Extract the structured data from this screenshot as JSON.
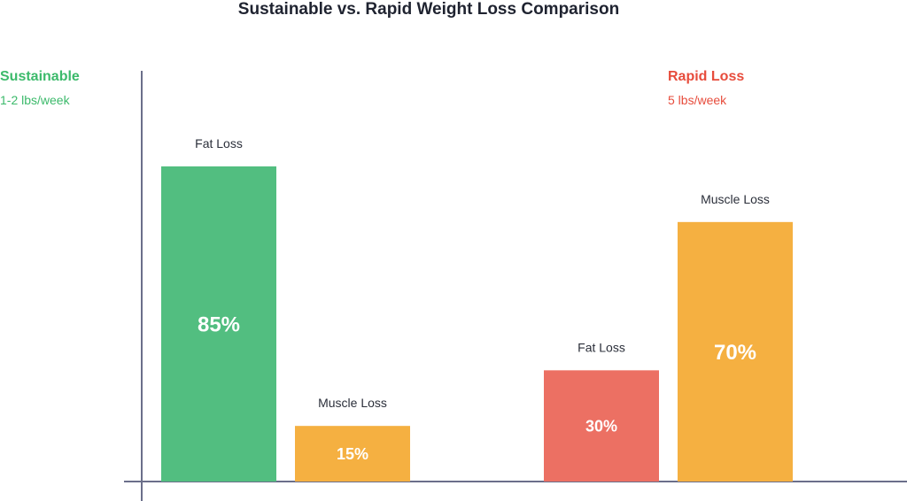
{
  "chart_data": {
    "type": "bar",
    "title": "Sustainable vs. Rapid Weight Loss Comparison",
    "xlabel": "",
    "ylabel": "",
    "ylim": [
      0,
      100
    ],
    "unit": "%",
    "grid": false,
    "groups": [
      {
        "name": "Sustainable",
        "subtitle": "1-2 lbs/week",
        "color": "#3cba6b",
        "bars": [
          {
            "label": "Fat Loss",
            "value": 85,
            "display": "85%",
            "color": "#52be80"
          },
          {
            "label": "Muscle Loss",
            "value": 15,
            "display": "15%",
            "color": "#f5b041"
          }
        ]
      },
      {
        "name": "Rapid Loss",
        "subtitle": "5 lbs/week",
        "color": "#e74c3c",
        "bars": [
          {
            "label": "Fat Loss",
            "value": 30,
            "display": "30%",
            "color": "#ec7063"
          },
          {
            "label": "Muscle Loss",
            "value": 70,
            "display": "70%",
            "color": "#f5b041"
          }
        ]
      }
    ]
  },
  "colors": {
    "axis": "#6b6f8a",
    "title": "#1f2330"
  }
}
